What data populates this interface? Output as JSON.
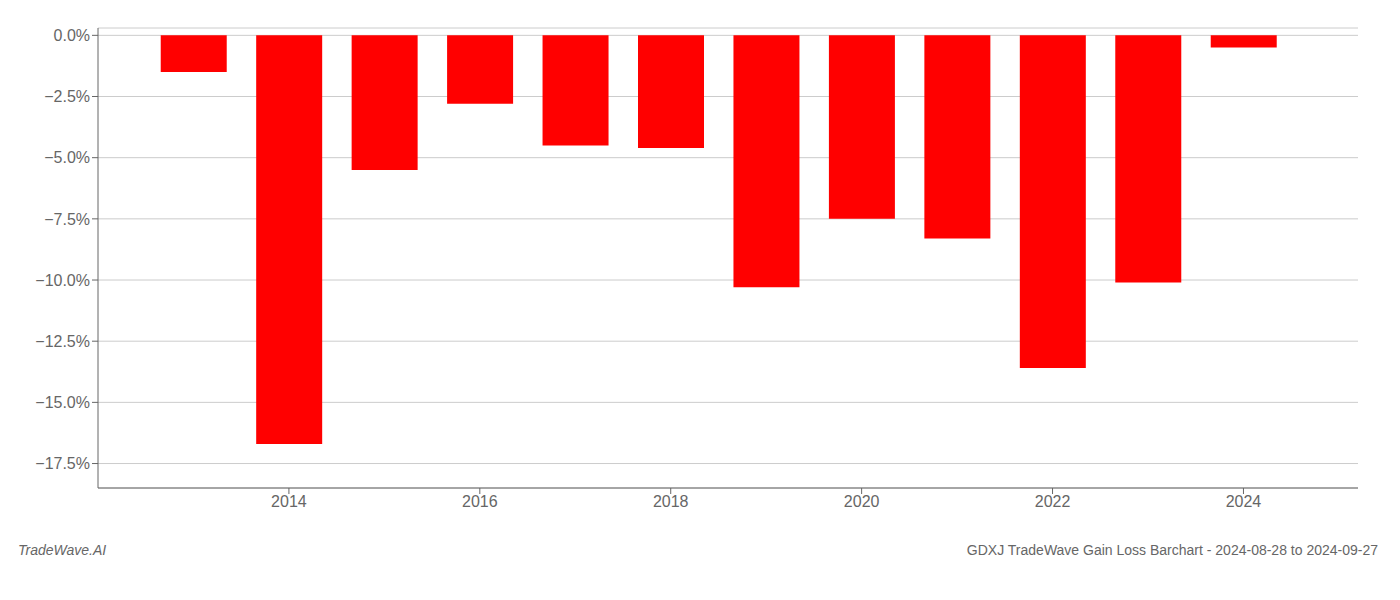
{
  "chart_data": {
    "type": "bar",
    "x": [
      2013,
      2014,
      2015,
      2016,
      2017,
      2018,
      2019,
      2020,
      2021,
      2022,
      2023,
      2024
    ],
    "values": [
      -1.5,
      -16.7,
      -5.5,
      -2.8,
      -4.5,
      -4.6,
      -10.3,
      -7.5,
      -8.3,
      -13.6,
      -10.1,
      -0.5
    ],
    "color": "#ff0000",
    "xlim": [
      2012,
      2025.2
    ],
    "xticks": [
      2014,
      2016,
      2018,
      2020,
      2022,
      2024
    ],
    "ylim": [
      -18.5,
      0.3
    ],
    "yticks": [
      {
        "value": 0.0,
        "label": "0.0%"
      },
      {
        "value": -2.5,
        "label": "−2.5%"
      },
      {
        "value": -5.0,
        "label": "−5.0%"
      },
      {
        "value": -7.5,
        "label": "−7.5%"
      },
      {
        "value": -10.0,
        "label": "−10.0%"
      },
      {
        "value": -12.5,
        "label": "−12.5%"
      },
      {
        "value": -15.0,
        "label": "−15.0%"
      },
      {
        "value": -17.5,
        "label": "−17.5%"
      }
    ],
    "grid": true,
    "annotations": [
      "TradeWave.AI",
      "GDXJ TradeWave Gain Loss Barchart - 2024-08-28 to 2024-09-27"
    ]
  }
}
